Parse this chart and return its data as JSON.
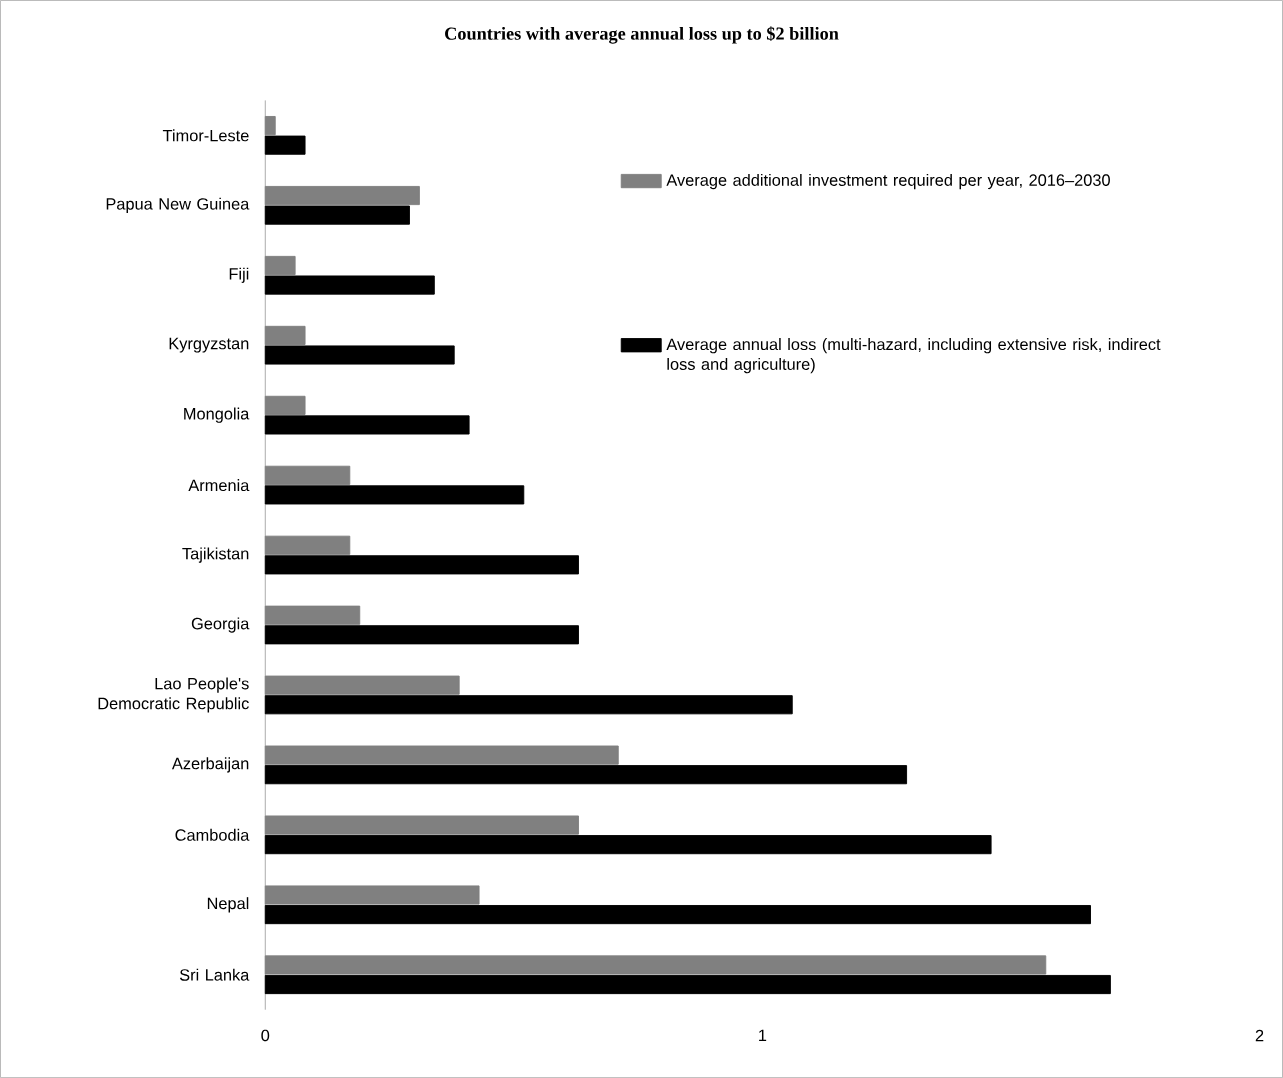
{
  "chart_data": {
    "type": "bar",
    "orientation": "horizontal",
    "title": "Countries with average annual loss up to $2 billion",
    "categories": [
      "Timor-Leste",
      "Papua New Guinea",
      "Fiji",
      "Kyrgyzstan",
      "Mongolia",
      "Armenia",
      "Tajikistan",
      "Georgia",
      "Lao People's Democratic Republic",
      "Azerbaijan",
      "Cambodia",
      "Nepal",
      "Sri Lanka"
    ],
    "series": [
      {
        "name": "Average additional investment required per year, 2016–2030",
        "color": "#808080",
        "values": [
          0.02,
          0.31,
          0.06,
          0.08,
          0.08,
          0.17,
          0.17,
          0.19,
          0.39,
          0.71,
          0.63,
          0.43,
          1.57
        ]
      },
      {
        "name": "Average annual loss (multi-hazard, including extensive risk, indirect loss and agriculture)",
        "color": "#000000",
        "values": [
          0.08,
          0.29,
          0.34,
          0.38,
          0.41,
          0.52,
          0.63,
          0.63,
          1.06,
          1.29,
          1.46,
          1.66,
          1.7
        ]
      }
    ],
    "xlim": [
      0,
      2
    ],
    "xticks": [
      0,
      1,
      2
    ],
    "legend": "top right"
  }
}
